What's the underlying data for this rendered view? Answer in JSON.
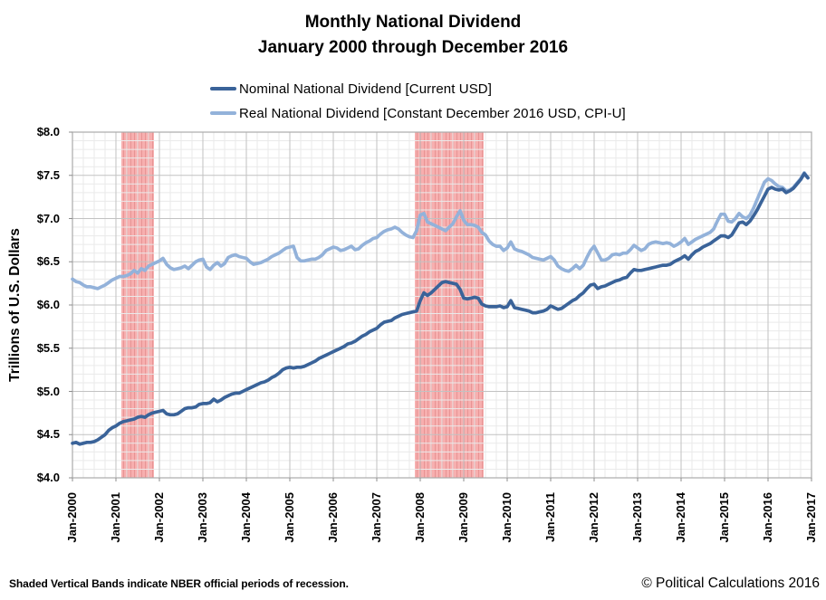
{
  "title": {
    "line1": "Monthly National Dividend",
    "line2": "January 2000 through December 2016"
  },
  "legend": [
    {
      "label": "Nominal National Dividend [Current USD]",
      "color": "#3A6399"
    },
    {
      "label": "Real National Dividend [Constant December 2016 USD, CPI-U]",
      "color": "#93B2DA"
    }
  ],
  "y_axis": {
    "title": "Trillions of U.S. Dollars",
    "tick_labels": [
      "$8.0",
      "$7.5",
      "$7.0",
      "$6.5",
      "$6.0",
      "$5.5",
      "$5.0",
      "$4.5",
      "$4.0"
    ]
  },
  "x_axis": {
    "tick_labels": [
      "Jan-2000",
      "Jan-2001",
      "Jan-2002",
      "Jan-2003",
      "Jan-2004",
      "Jan-2005",
      "Jan-2006",
      "Jan-2007",
      "Jan-2008",
      "Jan-2009",
      "Jan-2010",
      "Jan-2011",
      "Jan-2012",
      "Jan-2013",
      "Jan-2014",
      "Jan-2015",
      "Jan-2016",
      "Jan-2017"
    ]
  },
  "footnote": "Shaded Vertical Bands indicate NBER official periods of recession.",
  "copyright": "© Political Calculations 2016",
  "colors": {
    "band_fill": "#F7AFAF",
    "band_stripe": "#E79494",
    "grid_minor": "#EAEAEA",
    "grid_major": "#C2C2C2",
    "plot_border": "#ABABAB",
    "tick": "#8C8C8C"
  },
  "chart_data": {
    "type": "line",
    "title": "Monthly National Dividend January 2000 through December 2016",
    "frequency": "monthly",
    "x_start": "Jan-2000",
    "x_end": "Dec-2016",
    "xlabel": "",
    "ylabel": "Trillions of U.S. Dollars",
    "ylim": [
      4.0,
      8.0
    ],
    "grid": true,
    "legend_position": "top-left",
    "recession_bands": [
      {
        "start": "Mar-2001",
        "end": "Nov-2001"
      },
      {
        "start": "Dec-2007",
        "end": "Jun-2009"
      }
    ],
    "series": [
      {
        "name": "Nominal National Dividend [Current USD]",
        "color": "#3A6399",
        "values": [
          4.4,
          4.41,
          4.39,
          4.4,
          4.41,
          4.41,
          4.42,
          4.44,
          4.47,
          4.5,
          4.55,
          4.58,
          4.6,
          4.63,
          4.65,
          4.66,
          4.67,
          4.68,
          4.7,
          4.71,
          4.7,
          4.73,
          4.75,
          4.76,
          4.77,
          4.78,
          4.74,
          4.73,
          4.73,
          4.74,
          4.77,
          4.8,
          4.81,
          4.81,
          4.82,
          4.85,
          4.86,
          4.86,
          4.87,
          4.91,
          4.88,
          4.9,
          4.93,
          4.95,
          4.97,
          4.98,
          4.98,
          5.0,
          5.02,
          5.04,
          5.06,
          5.08,
          5.1,
          5.11,
          5.13,
          5.16,
          5.18,
          5.21,
          5.25,
          5.27,
          5.28,
          5.27,
          5.28,
          5.28,
          5.29,
          5.31,
          5.33,
          5.35,
          5.38,
          5.4,
          5.42,
          5.44,
          5.46,
          5.48,
          5.5,
          5.52,
          5.55,
          5.56,
          5.58,
          5.61,
          5.64,
          5.66,
          5.69,
          5.71,
          5.73,
          5.77,
          5.8,
          5.81,
          5.82,
          5.85,
          5.87,
          5.89,
          5.9,
          5.91,
          5.92,
          5.93,
          6.05,
          6.14,
          6.11,
          6.14,
          6.18,
          6.22,
          6.26,
          6.27,
          6.26,
          6.25,
          6.24,
          6.18,
          6.08,
          6.07,
          6.08,
          6.09,
          6.08,
          6.01,
          5.99,
          5.98,
          5.98,
          5.98,
          5.99,
          5.97,
          5.98,
          6.05,
          5.97,
          5.96,
          5.95,
          5.94,
          5.93,
          5.91,
          5.91,
          5.92,
          5.93,
          5.95,
          5.99,
          5.97,
          5.95,
          5.96,
          5.99,
          6.02,
          6.05,
          6.07,
          6.11,
          6.14,
          6.19,
          6.23,
          6.24,
          6.19,
          6.21,
          6.22,
          6.24,
          6.26,
          6.28,
          6.29,
          6.31,
          6.32,
          6.37,
          6.41,
          6.4,
          6.4,
          6.41,
          6.42,
          6.43,
          6.44,
          6.45,
          6.46,
          6.46,
          6.47,
          6.5,
          6.52,
          6.54,
          6.57,
          6.53,
          6.58,
          6.62,
          6.64,
          6.67,
          6.69,
          6.71,
          6.74,
          6.77,
          6.8,
          6.8,
          6.78,
          6.81,
          6.88,
          6.95,
          6.96,
          6.93,
          6.97,
          7.03,
          7.1,
          7.18,
          7.26,
          7.34,
          7.36,
          7.34,
          7.33,
          7.34,
          7.3,
          7.32,
          7.35,
          7.4,
          7.45,
          7.52,
          7.47
        ]
      },
      {
        "name": "Real National Dividend [Constant December 2016 USD, CPI-U]",
        "color": "#93B2DA",
        "values": [
          6.3,
          6.27,
          6.26,
          6.23,
          6.21,
          6.21,
          6.2,
          6.19,
          6.21,
          6.23,
          6.26,
          6.29,
          6.31,
          6.33,
          6.33,
          6.34,
          6.36,
          6.4,
          6.37,
          6.42,
          6.4,
          6.45,
          6.47,
          6.49,
          6.51,
          6.54,
          6.47,
          6.43,
          6.41,
          6.42,
          6.43,
          6.45,
          6.42,
          6.46,
          6.5,
          6.52,
          6.53,
          6.44,
          6.41,
          6.46,
          6.49,
          6.45,
          6.48,
          6.55,
          6.57,
          6.58,
          6.56,
          6.55,
          6.54,
          6.5,
          6.47,
          6.48,
          6.49,
          6.51,
          6.53,
          6.56,
          6.58,
          6.6,
          6.63,
          6.66,
          6.67,
          6.68,
          6.55,
          6.51,
          6.51,
          6.52,
          6.53,
          6.53,
          6.55,
          6.58,
          6.63,
          6.65,
          6.67,
          6.66,
          6.63,
          6.64,
          6.66,
          6.68,
          6.64,
          6.65,
          6.69,
          6.72,
          6.74,
          6.77,
          6.78,
          6.82,
          6.85,
          6.87,
          6.88,
          6.9,
          6.88,
          6.84,
          6.81,
          6.79,
          6.78,
          6.86,
          7.04,
          7.06,
          6.96,
          6.94,
          6.92,
          6.9,
          6.88,
          6.86,
          6.9,
          6.94,
          7.02,
          7.09,
          6.98,
          6.93,
          6.93,
          6.92,
          6.9,
          6.84,
          6.81,
          6.74,
          6.7,
          6.68,
          6.68,
          6.63,
          6.66,
          6.73,
          6.65,
          6.63,
          6.62,
          6.6,
          6.58,
          6.55,
          6.54,
          6.53,
          6.52,
          6.54,
          6.56,
          6.52,
          6.45,
          6.42,
          6.4,
          6.39,
          6.42,
          6.46,
          6.42,
          6.46,
          6.55,
          6.63,
          6.68,
          6.6,
          6.52,
          6.52,
          6.54,
          6.58,
          6.59,
          6.58,
          6.6,
          6.6,
          6.64,
          6.69,
          6.66,
          6.63,
          6.65,
          6.7,
          6.72,
          6.73,
          6.72,
          6.71,
          6.72,
          6.71,
          6.68,
          6.7,
          6.73,
          6.77,
          6.7,
          6.73,
          6.76,
          6.78,
          6.8,
          6.82,
          6.84,
          6.88,
          6.97,
          7.05,
          7.05,
          6.97,
          6.96,
          7.0,
          7.06,
          7.02,
          7.0,
          7.04,
          7.12,
          7.22,
          7.32,
          7.42,
          7.46,
          7.44,
          7.4,
          7.37,
          7.36,
          7.32,
          7.33,
          7.36,
          7.41,
          7.46,
          7.53,
          7.47
        ]
      }
    ]
  }
}
